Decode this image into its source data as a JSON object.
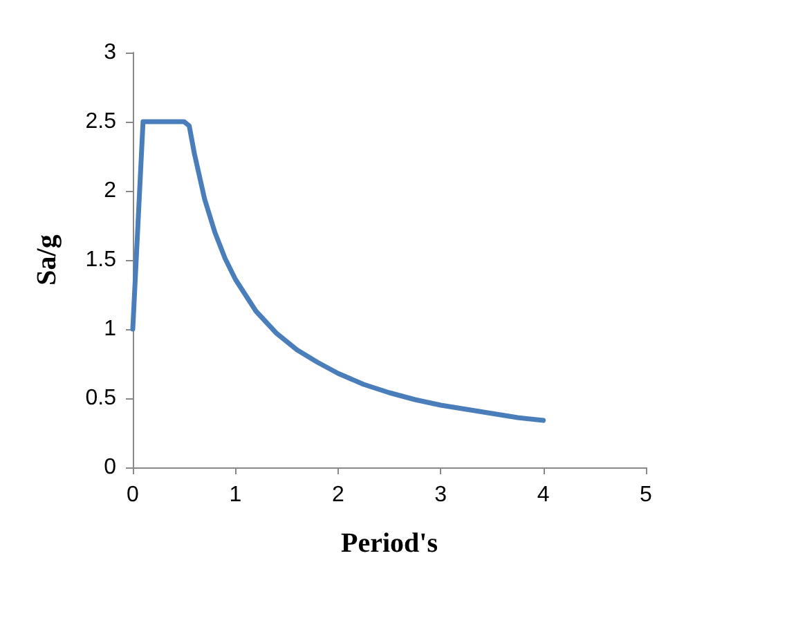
{
  "chart_data": {
    "type": "line",
    "xlabel": "Period's",
    "ylabel": "Sa/g",
    "x": [
      0,
      0.05,
      0.1,
      0.2,
      0.3,
      0.4,
      0.5,
      0.55,
      0.6,
      0.7,
      0.8,
      0.9,
      1,
      1.2,
      1.4,
      1.6,
      1.8,
      2,
      2.25,
      2.5,
      2.75,
      3,
      3.25,
      3.5,
      3.75,
      4
    ],
    "series": [
      {
        "color": "#4a7ebb",
        "values": [
          1,
          1.75,
          2.5,
          2.5,
          2.5,
          2.5,
          2.5,
          2.47,
          2.27,
          1.94,
          1.7,
          1.51,
          1.36,
          1.13,
          0.97,
          0.85,
          0.76,
          0.68,
          0.6,
          0.54,
          0.49,
          0.45,
          0.42,
          0.39,
          0.36,
          0.34
        ]
      }
    ],
    "xlim": [
      0,
      5
    ],
    "xticks": [
      0,
      1,
      2,
      3,
      4,
      5
    ],
    "ylim": [
      0,
      3
    ],
    "yticks": [
      0,
      0.5,
      1,
      1.5,
      2,
      2.5,
      3
    ],
    "grid": false,
    "marker": "none",
    "line_style": "solid"
  }
}
